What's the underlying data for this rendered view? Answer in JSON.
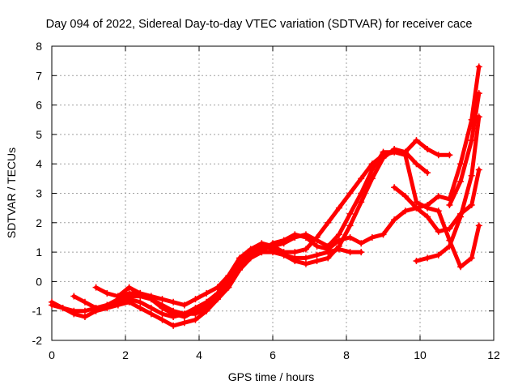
{
  "chart_data": {
    "type": "scatter",
    "title": "Day 094 of 2022, Sidereal Day-to-day VTEC variation (SDTVAR) for receiver cace",
    "xlabel": "GPS time / hours",
    "ylabel": "SDTVAR / TECUs",
    "xlim": [
      0,
      12
    ],
    "ylim": [
      -2,
      8
    ],
    "xticks": [
      "0",
      "2",
      "4",
      "6",
      "8",
      "10",
      "12"
    ],
    "yticks": [
      "-2",
      "-1",
      "0",
      "1",
      "2",
      "3",
      "4",
      "5",
      "6",
      "7",
      "8"
    ],
    "grid": true,
    "legend": "none",
    "marker": "+",
    "color": "#ff0000",
    "series": [
      {
        "x": [
          0.0,
          0.3,
          0.6,
          0.9,
          1.2,
          1.5,
          1.8,
          2.1,
          2.4,
          2.7,
          3.0,
          3.3,
          3.6,
          3.9,
          4.2,
          4.5,
          4.8,
          5.1,
          5.4,
          5.7,
          6.0,
          6.3,
          6.6,
          6.9,
          7.2,
          7.5,
          7.8,
          8.1,
          8.4,
          8.7,
          9.0,
          9.3,
          9.6,
          9.9,
          10.2,
          10.5,
          10.8,
          11.1,
          11.4,
          11.6
        ],
        "y": [
          -0.7,
          -0.9,
          -1.1,
          -1.2,
          -1.0,
          -0.9,
          -0.8,
          -0.7,
          -0.9,
          -1.1,
          -1.3,
          -1.5,
          -1.4,
          -1.3,
          -1.0,
          -0.6,
          -0.1,
          0.4,
          0.8,
          1.0,
          1.0,
          0.9,
          0.8,
          0.8,
          0.9,
          1.0,
          1.1,
          1.0,
          1.0,
          null,
          null,
          3.2,
          2.9,
          2.5,
          2.2,
          1.7,
          1.8,
          2.3,
          2.6,
          3.8
        ]
      },
      {
        "x": [
          0.0,
          0.3,
          0.6,
          0.9,
          1.2,
          1.5,
          1.8,
          2.1,
          2.4,
          2.7,
          3.0,
          3.3,
          3.6,
          3.9,
          4.2,
          4.5,
          4.8,
          5.1,
          5.4,
          5.7,
          6.0,
          6.3,
          6.6,
          6.9,
          7.2,
          7.5,
          7.8,
          8.1,
          8.4,
          8.7,
          9.0,
          9.3,
          9.6,
          9.9,
          10.2,
          10.5,
          10.8,
          11.1,
          11.4,
          11.6
        ],
        "y": [
          -0.8,
          -0.9,
          -1.0,
          -1.0,
          -0.9,
          -0.8,
          -0.7,
          -0.6,
          -0.7,
          -0.9,
          -1.1,
          -1.2,
          -1.1,
          -0.9,
          -0.7,
          -0.4,
          0.1,
          0.6,
          1.0,
          1.2,
          1.1,
          0.9,
          0.7,
          0.6,
          0.7,
          0.8,
          1.2,
          1.9,
          2.7,
          3.5,
          4.2,
          4.5,
          4.4,
          4.0,
          3.7,
          null,
          2.6,
          3.4,
          4.8,
          6.4
        ]
      },
      {
        "x": [
          0.0,
          0.3,
          0.6,
          0.9,
          1.2,
          1.5,
          1.8,
          2.1,
          2.4,
          2.7,
          3.0,
          3.3,
          3.6,
          3.9,
          4.2,
          4.5,
          4.8,
          5.1,
          5.4,
          5.7,
          6.0,
          6.3,
          6.6,
          6.9,
          7.2,
          7.5,
          7.8,
          8.1,
          8.4,
          8.7,
          9.0,
          9.3,
          9.6,
          9.9,
          10.2,
          10.5,
          10.8,
          11.1,
          11.4,
          11.6
        ],
        "y": [
          null,
          null,
          -0.5,
          -0.7,
          -0.9,
          -0.8,
          -0.6,
          -0.5,
          -0.5,
          -0.6,
          -0.8,
          -1.0,
          -1.1,
          -1.1,
          -0.9,
          -0.6,
          -0.2,
          0.4,
          0.9,
          1.1,
          1.2,
          1.3,
          1.5,
          1.6,
          1.4,
          1.2,
          1.6,
          2.3,
          3.0,
          3.8,
          4.4,
          4.4,
          4.4,
          4.8,
          4.5,
          4.3,
          4.3,
          null,
          null,
          null
        ]
      },
      {
        "x": [
          0.0,
          0.3,
          0.6,
          0.9,
          1.2,
          1.5,
          1.8,
          2.1,
          2.4,
          2.7,
          3.0,
          3.3,
          3.6,
          3.9,
          4.2,
          4.5,
          4.8,
          5.1,
          5.4,
          5.7,
          6.0,
          6.3,
          6.6,
          6.9,
          7.2,
          7.5,
          7.8,
          8.1,
          8.4,
          8.7,
          9.0,
          9.3,
          9.6,
          9.9,
          10.2,
          10.5,
          10.8,
          11.1,
          11.4,
          11.6
        ],
        "y": [
          null,
          null,
          null,
          null,
          -0.2,
          -0.4,
          -0.5,
          -0.2,
          -0.4,
          -0.6,
          -0.9,
          -1.1,
          -1.2,
          -1.0,
          -0.8,
          -0.5,
          0.0,
          0.6,
          0.9,
          1.0,
          1.3,
          1.4,
          1.6,
          1.5,
          1.2,
          1.1,
          1.4,
          1.5,
          1.3,
          1.5,
          1.6,
          2.1,
          2.4,
          2.5,
          2.6,
          2.9,
          2.8,
          4.0,
          5.5,
          7.3
        ]
      },
      {
        "x": [
          0.0,
          0.3,
          0.6,
          0.9,
          1.2,
          1.5,
          1.8,
          2.1,
          2.4,
          2.7,
          3.0,
          3.3,
          3.6,
          3.9,
          4.2,
          4.5,
          4.8,
          5.1,
          5.4,
          5.7,
          6.0,
          6.3,
          6.6,
          6.9,
          7.2,
          7.5,
          7.8,
          8.1,
          8.4,
          8.7,
          9.0,
          9.3,
          9.6,
          9.9,
          10.2,
          10.5,
          10.8,
          11.1,
          11.4,
          11.6
        ],
        "y": [
          null,
          null,
          null,
          null,
          null,
          null,
          -0.5,
          -0.4,
          -0.4,
          -0.5,
          -0.6,
          -0.7,
          -0.8,
          -0.6,
          -0.4,
          -0.2,
          0.2,
          0.8,
          1.1,
          1.3,
          1.2,
          1.0,
          1.0,
          1.1,
          1.5,
          2.0,
          2.5,
          3.0,
          3.5,
          4.0,
          4.3,
          4.4,
          4.3,
          2.7,
          2.5,
          2.4,
          1.4,
          0.5,
          0.8,
          1.9
        ]
      },
      {
        "x": [
          0.0,
          0.3,
          0.6,
          0.9,
          1.2,
          1.5,
          1.8,
          2.1,
          2.4,
          2.7,
          3.0,
          3.3,
          3.6,
          3.9,
          4.2,
          4.5,
          4.8,
          5.1,
          5.4,
          5.7,
          6.0,
          6.3,
          6.6,
          6.9,
          7.2,
          7.5,
          7.8,
          8.1,
          8.4,
          8.7,
          9.0,
          9.3,
          9.6,
          9.9,
          10.2,
          10.5,
          10.8,
          11.1,
          11.4,
          11.6
        ],
        "y": [
          null,
          null,
          null,
          null,
          null,
          null,
          null,
          null,
          null,
          null,
          null,
          null,
          null,
          null,
          null,
          null,
          null,
          null,
          null,
          null,
          null,
          null,
          null,
          null,
          null,
          null,
          null,
          null,
          null,
          null,
          null,
          null,
          null,
          0.7,
          0.8,
          0.9,
          1.2,
          2.2,
          3.6,
          5.6
        ]
      }
    ]
  }
}
